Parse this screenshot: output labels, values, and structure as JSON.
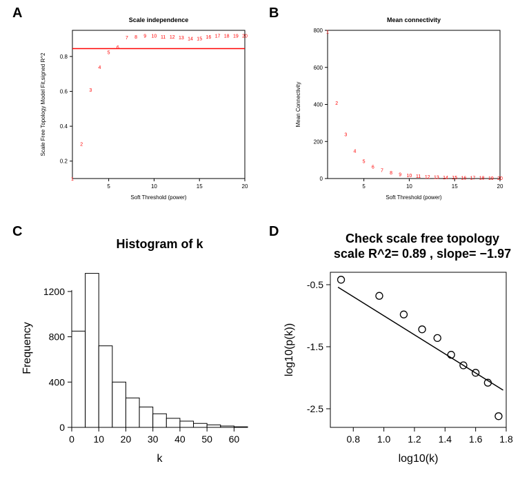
{
  "labels": {
    "A": "A",
    "B": "B",
    "C": "C",
    "D": "D"
  },
  "A": {
    "title": "Scale independence",
    "xlabel": "Soft Threshold (power)",
    "ylabel": "Scale Free Topology Model Fit,signed R^2",
    "xlim": [
      1,
      20
    ],
    "ylim": [
      0.1,
      0.95
    ],
    "xticks": [
      5,
      10,
      15,
      20
    ],
    "yticks": [
      0.2,
      0.4,
      0.6,
      0.8
    ],
    "cutoff": 0.845,
    "points": [
      [
        1,
        0.1
      ],
      [
        2,
        0.3
      ],
      [
        3,
        0.61
      ],
      [
        4,
        0.74
      ],
      [
        5,
        0.825
      ],
      [
        6,
        0.855
      ],
      [
        7,
        0.91
      ],
      [
        8,
        0.915
      ],
      [
        9,
        0.92
      ],
      [
        10,
        0.92
      ],
      [
        11,
        0.915
      ],
      [
        12,
        0.915
      ],
      [
        13,
        0.91
      ],
      [
        14,
        0.905
      ],
      [
        15,
        0.905
      ],
      [
        16,
        0.915
      ],
      [
        17,
        0.92
      ],
      [
        18,
        0.92
      ],
      [
        19,
        0.92
      ],
      [
        20,
        0.92
      ]
    ],
    "point_color": "#ff0000",
    "line_color": "#ff0000",
    "title_fontsize": 9,
    "label_fontsize": 8,
    "tick_fontsize": 8,
    "point_fontsize": 7
  },
  "B": {
    "title": "Mean connectivity",
    "xlabel": "Soft Threshold (power)",
    "ylabel": "Mean Connectivity",
    "xlim": [
      1,
      20
    ],
    "ylim": [
      0,
      800
    ],
    "xticks": [
      5,
      10,
      15,
      20
    ],
    "yticks": [
      0,
      200,
      400,
      600,
      800
    ],
    "points": [
      [
        1,
        795
      ],
      [
        2,
        410
      ],
      [
        3,
        240
      ],
      [
        4,
        150
      ],
      [
        5,
        95
      ],
      [
        6,
        65
      ],
      [
        7,
        46
      ],
      [
        8,
        33
      ],
      [
        9,
        25
      ],
      [
        10,
        19
      ],
      [
        11,
        15
      ],
      [
        12,
        12
      ],
      [
        13,
        10
      ],
      [
        14,
        8
      ],
      [
        15,
        7
      ],
      [
        16,
        6
      ],
      [
        17,
        5
      ],
      [
        18,
        5
      ],
      [
        19,
        4
      ],
      [
        20,
        4
      ]
    ],
    "point_color": "#ff0000",
    "title_fontsize": 9,
    "label_fontsize": 8,
    "tick_fontsize": 8,
    "point_fontsize": 7
  },
  "C": {
    "title": "Histogram of k",
    "xlabel": "k",
    "ylabel": "Frequency",
    "xlim": [
      0,
      65
    ],
    "ylim": [
      0,
      1400
    ],
    "xticks": [
      0,
      10,
      20,
      30,
      40,
      50,
      60
    ],
    "yticks": [
      0,
      400,
      800,
      1200
    ],
    "bins": [
      [
        0,
        5,
        850
      ],
      [
        5,
        10,
        1360
      ],
      [
        10,
        15,
        720
      ],
      [
        15,
        20,
        400
      ],
      [
        20,
        25,
        260
      ],
      [
        25,
        30,
        180
      ],
      [
        30,
        35,
        120
      ],
      [
        35,
        40,
        80
      ],
      [
        40,
        45,
        55
      ],
      [
        45,
        50,
        35
      ],
      [
        50,
        55,
        22
      ],
      [
        55,
        60,
        12
      ],
      [
        60,
        65,
        5
      ]
    ],
    "title_fontsize": 18,
    "label_fontsize": 16,
    "tick_fontsize": 14
  },
  "D": {
    "title1": "Check scale free topology",
    "title2": "scale R^2= 0.89 , slope= −1.97",
    "xlabel": "log10(k)",
    "ylabel": "log10(p(k))",
    "xlim": [
      0.65,
      1.8
    ],
    "ylim": [
      -2.8,
      -0.3
    ],
    "xticks": [
      0.8,
      1.0,
      1.2,
      1.4,
      1.6,
      1.8
    ],
    "yticks": [
      -2.5,
      -1.5,
      -0.5
    ],
    "points": [
      [
        0.72,
        -0.42
      ],
      [
        0.97,
        -0.68
      ],
      [
        1.13,
        -0.98
      ],
      [
        1.25,
        -1.22
      ],
      [
        1.35,
        -1.36
      ],
      [
        1.44,
        -1.63
      ],
      [
        1.52,
        -1.8
      ],
      [
        1.6,
        -1.92
      ],
      [
        1.68,
        -2.08
      ],
      [
        1.75,
        -2.62
      ]
    ],
    "line": {
      "x1": 0.7,
      "y1": -0.54,
      "x2": 1.78,
      "y2": -2.2
    },
    "title_fontsize": 18,
    "label_fontsize": 16,
    "tick_fontsize": 14,
    "marker_r": 5
  }
}
